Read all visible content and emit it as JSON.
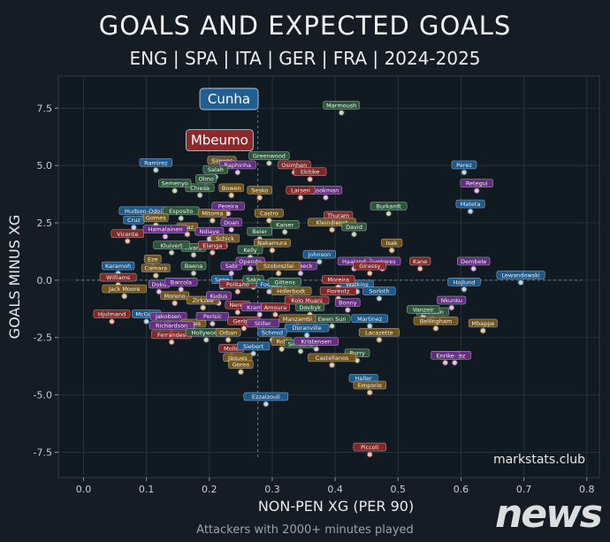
{
  "header": {
    "title": "GOALS AND EXPECTED GOALS",
    "subtitle": "ENG | SPA | ITA | GER | FRA | 2024-2025"
  },
  "footer": {
    "note": "Attackers with 2000+ minutes played"
  },
  "watermark": "news",
  "chart_data": {
    "type": "scatter",
    "xlabel": "NON-PEN XG (PER 90)",
    "ylabel": "GOALS MINUS XG",
    "xlim": [
      -0.04,
      0.82
    ],
    "ylim": [
      -8.6,
      8.9
    ],
    "xticks": [
      0.0,
      0.1,
      0.2,
      0.3,
      0.4,
      0.5,
      0.6,
      0.7,
      0.8
    ],
    "yticks": [
      -7.5,
      -5.0,
      -2.5,
      0.0,
      2.5,
      5.0,
      7.5
    ],
    "xtick_labels": [
      "0.0",
      "0.1",
      "0.2",
      "0.3",
      "0.4",
      "0.5",
      "0.6",
      "0.7",
      "0.8"
    ],
    "ytick_labels": [
      "-7.5",
      "-5.0",
      "-2.5",
      "0.0",
      "2.5",
      "5.0",
      "7.5"
    ],
    "grid": true,
    "reference_lines": {
      "x": 0.277,
      "y": 0.0
    },
    "credit": "markstats.club",
    "league_colors": {
      "ENG": "#8b2a2a",
      "SPA": "#1f5f93",
      "ITA": "#2f5d3e",
      "GER": "#6a2f8a",
      "FRA": "#7a5a1c",
      "OTHER": "#c0357a"
    },
    "highlighted": [
      {
        "name": "Cunha",
        "x": 0.22,
        "y": 7.9,
        "league": "SPA"
      },
      {
        "name": "Mbeumo",
        "x": 0.205,
        "y": 6.1,
        "league": "ENG"
      }
    ],
    "points": [
      {
        "name": "Marmoush",
        "x": 0.41,
        "y": 7.3,
        "league": "ITA"
      },
      {
        "name": "Greenwood",
        "x": 0.295,
        "y": 5.1,
        "league": "ITA"
      },
      {
        "name": "Osimhen",
        "x": 0.335,
        "y": 4.7,
        "league": "ENG"
      },
      {
        "name": "Ekitike",
        "x": 0.36,
        "y": 4.4,
        "league": "ENG"
      },
      {
        "name": "Simons",
        "x": 0.22,
        "y": 4.9,
        "league": "FRA"
      },
      {
        "name": "Raphinha",
        "x": 0.245,
        "y": 4.7,
        "league": "GER"
      },
      {
        "name": "Ramirez",
        "x": 0.115,
        "y": 4.8,
        "league": "SPA"
      },
      {
        "name": "Salah",
        "x": 0.21,
        "y": 4.5,
        "league": "ITA"
      },
      {
        "name": "Olmo",
        "x": 0.195,
        "y": 4.1,
        "league": "ITA"
      },
      {
        "name": "Chiesa",
        "x": 0.185,
        "y": 3.7,
        "league": "ITA"
      },
      {
        "name": "Bowen",
        "x": 0.235,
        "y": 3.7,
        "league": "FRA"
      },
      {
        "name": "Semenyo",
        "x": 0.145,
        "y": 3.9,
        "league": "ITA"
      },
      {
        "name": "Lookman",
        "x": 0.385,
        "y": 3.6,
        "league": "GER"
      },
      {
        "name": "Larsen",
        "x": 0.345,
        "y": 3.6,
        "league": "ENG"
      },
      {
        "name": "Sesko",
        "x": 0.28,
        "y": 3.6,
        "league": "FRA"
      },
      {
        "name": "Perez",
        "x": 0.605,
        "y": 4.7,
        "league": "SPA"
      },
      {
        "name": "Retegui",
        "x": 0.625,
        "y": 3.9,
        "league": "GER"
      },
      {
        "name": "Mateta",
        "x": 0.615,
        "y": 3.0,
        "league": "SPA"
      },
      {
        "name": "Burkardt",
        "x": 0.485,
        "y": 2.9,
        "league": "ITA"
      },
      {
        "name": "Thuram",
        "x": 0.405,
        "y": 2.5,
        "league": "ENG"
      },
      {
        "name": "Kleindienst",
        "x": 0.395,
        "y": 2.2,
        "league": "FRA"
      },
      {
        "name": "David",
        "x": 0.43,
        "y": 2.0,
        "league": "ITA"
      },
      {
        "name": "Isak",
        "x": 0.49,
        "y": 1.3,
        "league": "FRA"
      },
      {
        "name": "Kane",
        "x": 0.535,
        "y": 0.5,
        "league": "ENG"
      },
      {
        "name": "Dembele",
        "x": 0.62,
        "y": 0.5,
        "league": "GER"
      },
      {
        "name": "Lewandowski",
        "x": 0.695,
        "y": -0.1,
        "league": "SPA"
      },
      {
        "name": "Hojlund",
        "x": 0.605,
        "y": -0.4,
        "league": "SPA"
      },
      {
        "name": "Nkunku",
        "x": 0.585,
        "y": -1.2,
        "league": "GER"
      },
      {
        "name": "Mbappe",
        "x": 0.635,
        "y": -2.2,
        "league": "FRA"
      },
      {
        "name": "Jackson",
        "x": 0.555,
        "y": -1.7,
        "league": "ITA"
      },
      {
        "name": "Gyokeres",
        "x": 0.475,
        "y": 0.5,
        "league": "GER"
      },
      {
        "name": "Haaland",
        "x": 0.43,
        "y": 0.5,
        "league": "GER"
      },
      {
        "name": "Johnson",
        "x": 0.375,
        "y": 0.8,
        "league": "SPA"
      },
      {
        "name": "Welbeck",
        "x": 0.345,
        "y": 0.3,
        "league": "GER"
      },
      {
        "name": "Watkins",
        "x": 0.435,
        "y": -0.5,
        "league": "SPA"
      },
      {
        "name": "Moreira",
        "x": 0.405,
        "y": -0.3,
        "league": "ENG"
      },
      {
        "name": "Fiorentz",
        "x": 0.405,
        "y": -0.8,
        "league": "ENG"
      },
      {
        "name": "Bonny",
        "x": 0.42,
        "y": -1.3,
        "league": "GER"
      },
      {
        "name": "Ewen Sun",
        "x": 0.395,
        "y": -2.0,
        "league": "ITA"
      },
      {
        "name": "Lacazette",
        "x": 0.47,
        "y": -2.6,
        "league": "FRA"
      },
      {
        "name": "Martinez",
        "x": 0.455,
        "y": -2.0,
        "league": "SPA"
      },
      {
        "name": "Burry",
        "x": 0.435,
        "y": -3.5,
        "league": "ITA"
      },
      {
        "name": "Haller",
        "x": 0.445,
        "y": -4.6,
        "league": "SPA"
      },
      {
        "name": "Emporio",
        "x": 0.455,
        "y": -4.9,
        "league": "FRA"
      },
      {
        "name": "Castellanos",
        "x": 0.395,
        "y": -3.7,
        "league": "FRA"
      },
      {
        "name": "Ezzalzouli",
        "x": 0.29,
        "y": -5.4,
        "league": "SPA"
      },
      {
        "name": "Piccoli",
        "x": 0.455,
        "y": -7.6,
        "league": "ENG"
      },
      {
        "name": "Bellingham",
        "x": 0.56,
        "y": -2.1,
        "league": "FRA"
      },
      {
        "name": "Alvarez",
        "x": 0.59,
        "y": -3.6,
        "league": "GER"
      },
      {
        "name": "Vanzeir",
        "x": 0.54,
        "y": -1.6,
        "league": "ITA"
      },
      {
        "name": "Sorloth",
        "x": 0.47,
        "y": -0.8,
        "league": "SPA"
      },
      {
        "name": "Girassy",
        "x": 0.455,
        "y": 0.3,
        "league": "ENG"
      },
      {
        "name": "Hudson-Odoi",
        "x": 0.095,
        "y": 2.7,
        "league": "SPA"
      },
      {
        "name": "Vicente",
        "x": 0.07,
        "y": 1.7,
        "league": "ENG"
      },
      {
        "name": "Cruz",
        "x": 0.08,
        "y": 2.3,
        "league": "SPA"
      },
      {
        "name": "Esposito",
        "x": 0.155,
        "y": 2.7,
        "league": "ITA"
      },
      {
        "name": "Gomes",
        "x": 0.115,
        "y": 2.4,
        "league": "FRA"
      },
      {
        "name": "Diaz",
        "x": 0.165,
        "y": 2.0,
        "league": "FRA"
      },
      {
        "name": "Ndiaye",
        "x": 0.2,
        "y": 1.8,
        "league": "GER"
      },
      {
        "name": "Mitoma",
        "x": 0.205,
        "y": 2.6,
        "league": "FRA"
      },
      {
        "name": "Doan",
        "x": 0.235,
        "y": 2.2,
        "league": "GER"
      },
      {
        "name": "Pereira",
        "x": 0.23,
        "y": 2.9,
        "league": "GER"
      },
      {
        "name": "Castro",
        "x": 0.295,
        "y": 2.6,
        "league": "FRA"
      },
      {
        "name": "Kaiser",
        "x": 0.32,
        "y": 2.1,
        "league": "ITA"
      },
      {
        "name": "Beier",
        "x": 0.28,
        "y": 1.8,
        "league": "ITA"
      },
      {
        "name": "Nakamura",
        "x": 0.3,
        "y": 1.3,
        "league": "FRA"
      },
      {
        "name": "Kelly",
        "x": 0.265,
        "y": 1.0,
        "league": "ITA"
      },
      {
        "name": "Schick",
        "x": 0.225,
        "y": 1.5,
        "league": "FRA"
      },
      {
        "name": "Hamalainen",
        "x": 0.13,
        "y": 1.9,
        "league": "GER"
      },
      {
        "name": "Kvara",
        "x": 0.175,
        "y": 1.1,
        "league": "ITA"
      },
      {
        "name": "Elanga",
        "x": 0.205,
        "y": 1.2,
        "league": "ENG"
      },
      {
        "name": "Kluivert",
        "x": 0.14,
        "y": 1.2,
        "league": "ITA"
      },
      {
        "name": "Eze",
        "x": 0.11,
        "y": 0.6,
        "league": "FRA"
      },
      {
        "name": "Karamoh",
        "x": 0.055,
        "y": 0.3,
        "league": "SPA"
      },
      {
        "name": "Camara",
        "x": 0.115,
        "y": 0.2,
        "league": "FRA"
      },
      {
        "name": "Baena",
        "x": 0.175,
        "y": 0.3,
        "league": "ITA"
      },
      {
        "name": "Sabi",
        "x": 0.235,
        "y": 0.3,
        "league": "GER"
      },
      {
        "name": "Openda",
        "x": 0.265,
        "y": 0.5,
        "league": "GER"
      },
      {
        "name": "Szoboszlai",
        "x": 0.31,
        "y": 0.3,
        "league": "FRA"
      },
      {
        "name": "Williams",
        "x": 0.055,
        "y": -0.2,
        "league": "ENG"
      },
      {
        "name": "Jack Moore",
        "x": 0.065,
        "y": -0.7,
        "league": "FRA"
      },
      {
        "name": "Doku",
        "x": 0.12,
        "y": -0.5,
        "league": "GER"
      },
      {
        "name": "Barcola",
        "x": 0.155,
        "y": -0.4,
        "league": "GER"
      },
      {
        "name": "Sane",
        "x": 0.22,
        "y": -0.3,
        "league": "SPA"
      },
      {
        "name": "Politano",
        "x": 0.245,
        "y": -0.5,
        "league": "ENG"
      },
      {
        "name": "Saka",
        "x": 0.27,
        "y": -0.3,
        "league": "ITA"
      },
      {
        "name": "Foden",
        "x": 0.295,
        "y": -0.5,
        "league": "SPA"
      },
      {
        "name": "Gittens",
        "x": 0.32,
        "y": -0.4,
        "league": "ITA"
      },
      {
        "name": "Moreno",
        "x": 0.145,
        "y": -1.0,
        "league": "FRA"
      },
      {
        "name": "Zirkzee",
        "x": 0.19,
        "y": -1.2,
        "league": "FRA"
      },
      {
        "name": "Kudus",
        "x": 0.215,
        "y": -1.0,
        "league": "GER"
      },
      {
        "name": "Neres",
        "x": 0.245,
        "y": -1.4,
        "league": "ENG"
      },
      {
        "name": "Kramaric",
        "x": 0.28,
        "y": -1.5,
        "league": "GER"
      },
      {
        "name": "Amoura",
        "x": 0.305,
        "y": -1.5,
        "league": "ENG"
      },
      {
        "name": "Holerbodt",
        "x": 0.33,
        "y": -0.8,
        "league": "FRA"
      },
      {
        "name": "Kolo Muani",
        "x": 0.355,
        "y": -1.2,
        "league": "ENG"
      },
      {
        "name": "Dovbyk",
        "x": 0.36,
        "y": -1.5,
        "league": "ITA"
      },
      {
        "name": "McGinn",
        "x": 0.1,
        "y": -1.8,
        "league": "SPA"
      },
      {
        "name": "Hjulmand",
        "x": 0.045,
        "y": -1.8,
        "league": "ENG"
      },
      {
        "name": "Jakobsen",
        "x": 0.135,
        "y": -1.9,
        "league": "GER"
      },
      {
        "name": "Brais",
        "x": 0.175,
        "y": -2.2,
        "league": "FRA"
      },
      {
        "name": "Perisic",
        "x": 0.205,
        "y": -1.9,
        "league": "GER"
      },
      {
        "name": "Gerbert",
        "x": 0.255,
        "y": -2.1,
        "league": "ENG"
      },
      {
        "name": "Stiller",
        "x": 0.285,
        "y": -2.2,
        "league": "GER"
      },
      {
        "name": "Manzambi",
        "x": 0.34,
        "y": -2.0,
        "league": "FRA"
      },
      {
        "name": "Duranville",
        "x": 0.355,
        "y": -2.4,
        "league": "SPA"
      },
      {
        "name": "Ferrandes",
        "x": 0.14,
        "y": -2.7,
        "league": "ENG"
      },
      {
        "name": "Richardson",
        "x": 0.14,
        "y": -2.3,
        "league": "GER"
      },
      {
        "name": "Hollywood",
        "x": 0.195,
        "y": -2.6,
        "league": "ITA"
      },
      {
        "name": "Orban",
        "x": 0.23,
        "y": -2.6,
        "league": "FRA"
      },
      {
        "name": "Schmid",
        "x": 0.3,
        "y": -2.6,
        "league": "SPA"
      },
      {
        "name": "Rolf",
        "x": 0.315,
        "y": -3.0,
        "league": "FRA"
      },
      {
        "name": "Mollo",
        "x": 0.235,
        "y": -3.3,
        "league": "ENG"
      },
      {
        "name": "Siebert",
        "x": 0.27,
        "y": -3.2,
        "league": "SPA"
      },
      {
        "name": "Simeone",
        "x": 0.345,
        "y": -3.1,
        "league": "ITA"
      },
      {
        "name": "Kristensen",
        "x": 0.37,
        "y": -3.0,
        "league": "GER"
      },
      {
        "name": "Jaques",
        "x": 0.245,
        "y": -3.7,
        "league": "FRA"
      },
      {
        "name": "Gorea",
        "x": 0.25,
        "y": -4.0,
        "league": "FRA"
      },
      {
        "name": "Enrike",
        "x": 0.575,
        "y": -3.6,
        "league": "GER"
      }
    ]
  }
}
